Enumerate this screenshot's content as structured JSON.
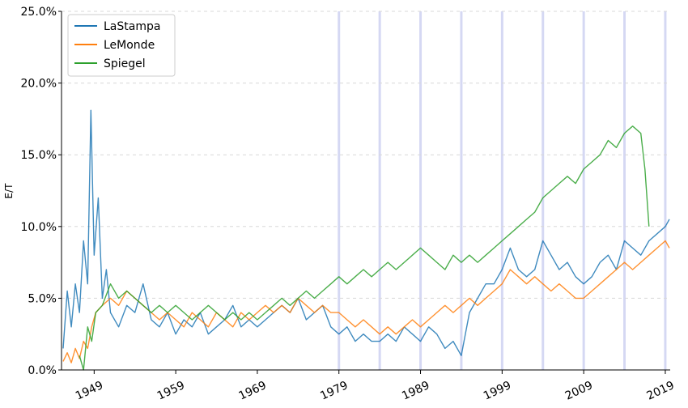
{
  "chart_data": {
    "type": "line",
    "title": "",
    "xlabel": "",
    "ylabel": "E/T",
    "xlim": [
      1945.0,
      2019.6
    ],
    "ylim": [
      0,
      0.25
    ],
    "y_tick_values": [
      0,
      0.05,
      0.1,
      0.15,
      0.2,
      0.25
    ],
    "y_tick_labels": [
      "0.0%",
      "5.0%",
      "10.0%",
      "15.0%",
      "20.0%",
      "25.0%"
    ],
    "x_tick_values": [
      1949,
      1959,
      1969,
      1979,
      1989,
      1999,
      2009,
      2019
    ],
    "x_tick_labels": [
      "1949",
      "1959",
      "1969",
      "1979",
      "1989",
      "1999",
      "2009",
      "2019"
    ],
    "grid": "horizontal dashed",
    "legend_position": "top-left",
    "highlight_lines_x": [
      1979,
      1984,
      1989,
      1994,
      1999,
      2004,
      2009,
      2014,
      2019
    ],
    "highlight_color": "#c8ccf0",
    "series": [
      {
        "name": "LaStampa",
        "color": "#1f77b4",
        "x": [
          1945.2,
          1945.7,
          1946.2,
          1946.7,
          1947.2,
          1947.7,
          1948.2,
          1948.6,
          1949.0,
          1949.5,
          1950,
          1950.5,
          1951,
          1952,
          1953,
          1954,
          1955,
          1956,
          1957,
          1958,
          1959,
          1960,
          1961,
          1962,
          1963,
          1964,
          1965,
          1966,
          1967,
          1968,
          1969,
          1970,
          1971,
          1972,
          1973,
          1974,
          1975,
          1976,
          1977,
          1978,
          1979,
          1980,
          1981,
          1982,
          1983,
          1984,
          1985,
          1986,
          1987,
          1988,
          1989,
          1990,
          1991,
          1992,
          1993,
          1994,
          1995,
          1996,
          1997,
          1998,
          1999,
          2000,
          2001,
          2002,
          2003,
          2004,
          2005,
          2006,
          2007,
          2008,
          2009,
          2010,
          2011,
          2012,
          2013,
          2014,
          2015,
          2016,
          2017,
          2018,
          2019,
          2019.5
        ],
        "y": [
          0.015,
          0.055,
          0.03,
          0.06,
          0.04,
          0.09,
          0.06,
          0.181,
          0.08,
          0.12,
          0.05,
          0.07,
          0.04,
          0.03,
          0.045,
          0.04,
          0.06,
          0.035,
          0.03,
          0.04,
          0.025,
          0.035,
          0.03,
          0.04,
          0.025,
          0.03,
          0.035,
          0.045,
          0.03,
          0.035,
          0.03,
          0.035,
          0.04,
          0.045,
          0.04,
          0.05,
          0.035,
          0.04,
          0.045,
          0.03,
          0.025,
          0.03,
          0.02,
          0.025,
          0.02,
          0.02,
          0.025,
          0.02,
          0.03,
          0.025,
          0.02,
          0.03,
          0.025,
          0.015,
          0.02,
          0.01,
          0.04,
          0.05,
          0.06,
          0.06,
          0.07,
          0.085,
          0.07,
          0.065,
          0.07,
          0.09,
          0.08,
          0.07,
          0.075,
          0.065,
          0.06,
          0.065,
          0.075,
          0.08,
          0.07,
          0.09,
          0.085,
          0.08,
          0.09,
          0.095,
          0.1,
          0.105
        ]
      },
      {
        "name": "LeMonde",
        "color": "#ff7f0e",
        "x": [
          1945.2,
          1945.7,
          1946.2,
          1946.7,
          1947.2,
          1947.7,
          1948.2,
          1948.7,
          1949.2,
          1950,
          1951,
          1952,
          1953,
          1954,
          1955,
          1956,
          1957,
          1958,
          1959,
          1960,
          1961,
          1962,
          1963,
          1964,
          1965,
          1966,
          1967,
          1968,
          1969,
          1970,
          1971,
          1972,
          1973,
          1974,
          1975,
          1976,
          1977,
          1978,
          1979,
          1980,
          1981,
          1982,
          1983,
          1984,
          1985,
          1986,
          1987,
          1988,
          1989,
          1990,
          1991,
          1992,
          1993,
          1994,
          1995,
          1996,
          1997,
          1998,
          1999,
          2000,
          2001,
          2002,
          2003,
          2004,
          2005,
          2006,
          2007,
          2008,
          2009,
          2010,
          2011,
          2012,
          2013,
          2014,
          2015,
          2016,
          2017,
          2018,
          2019,
          2019.5
        ],
        "y": [
          0.006,
          0.012,
          0.005,
          0.015,
          0.008,
          0.02,
          0.015,
          0.03,
          0.04,
          0.045,
          0.05,
          0.045,
          0.055,
          0.05,
          0.045,
          0.04,
          0.035,
          0.04,
          0.035,
          0.03,
          0.04,
          0.035,
          0.03,
          0.04,
          0.035,
          0.03,
          0.04,
          0.035,
          0.04,
          0.045,
          0.04,
          0.045,
          0.04,
          0.05,
          0.045,
          0.04,
          0.045,
          0.04,
          0.04,
          0.035,
          0.03,
          0.035,
          0.03,
          0.025,
          0.03,
          0.025,
          0.03,
          0.035,
          0.03,
          0.035,
          0.04,
          0.045,
          0.04,
          0.045,
          0.05,
          0.045,
          0.05,
          0.055,
          0.06,
          0.07,
          0.065,
          0.06,
          0.065,
          0.06,
          0.055,
          0.06,
          0.055,
          0.05,
          0.05,
          0.055,
          0.06,
          0.065,
          0.07,
          0.075,
          0.07,
          0.075,
          0.08,
          0.085,
          0.09,
          0.085
        ]
      },
      {
        "name": "Spiegel",
        "color": "#2ca02c",
        "x": [
          1947.2,
          1947.7,
          1948.2,
          1948.7,
          1949.2,
          1950,
          1951,
          1952,
          1953,
          1954,
          1955,
          1956,
          1957,
          1958,
          1959,
          1960,
          1961,
          1962,
          1963,
          1964,
          1965,
          1966,
          1967,
          1968,
          1969,
          1970,
          1971,
          1972,
          1973,
          1974,
          1975,
          1976,
          1977,
          1978,
          1979,
          1980,
          1981,
          1982,
          1983,
          1984,
          1985,
          1986,
          1987,
          1988,
          1989,
          1990,
          1991,
          1992,
          1993,
          1994,
          1995,
          1996,
          1997,
          1998,
          1999,
          2000,
          2001,
          2002,
          2003,
          2004,
          2005,
          2006,
          2007,
          2008,
          2009,
          2010,
          2011,
          2012,
          2013,
          2014,
          2015,
          2016,
          2016.5,
          2017
        ],
        "y": [
          0.01,
          0.0,
          0.03,
          0.02,
          0.04,
          0.045,
          0.06,
          0.05,
          0.055,
          0.05,
          0.045,
          0.04,
          0.045,
          0.04,
          0.045,
          0.04,
          0.035,
          0.04,
          0.045,
          0.04,
          0.035,
          0.04,
          0.035,
          0.04,
          0.035,
          0.04,
          0.045,
          0.05,
          0.045,
          0.05,
          0.055,
          0.05,
          0.055,
          0.06,
          0.065,
          0.06,
          0.065,
          0.07,
          0.065,
          0.07,
          0.075,
          0.07,
          0.075,
          0.08,
          0.085,
          0.08,
          0.075,
          0.07,
          0.08,
          0.075,
          0.08,
          0.075,
          0.08,
          0.085,
          0.09,
          0.095,
          0.1,
          0.105,
          0.11,
          0.12,
          0.125,
          0.13,
          0.135,
          0.13,
          0.14,
          0.145,
          0.15,
          0.16,
          0.155,
          0.165,
          0.17,
          0.165,
          0.14,
          0.1
        ]
      }
    ]
  }
}
